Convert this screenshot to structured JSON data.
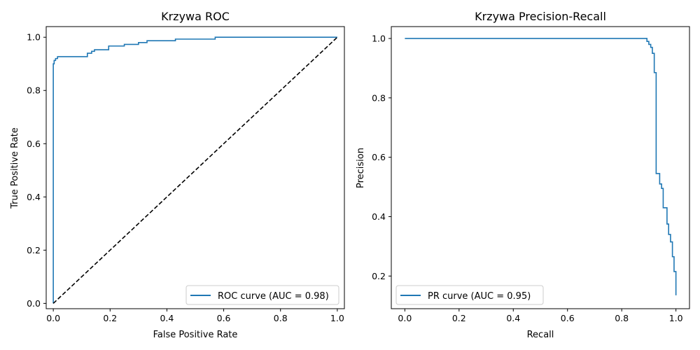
{
  "chart_data": [
    {
      "type": "line",
      "title": "Krzywa ROC",
      "xlabel": "False Positive Rate",
      "ylabel": "True Positive Rate",
      "xlim": [
        -0.025,
        1.025
      ],
      "ylim": [
        -0.02,
        1.04
      ],
      "xticks": [
        "0.0",
        "0.2",
        "0.4",
        "0.6",
        "0.8",
        "1.0"
      ],
      "yticks": [
        "0.0",
        "0.2",
        "0.4",
        "0.6",
        "0.8",
        "1.0"
      ],
      "legend_position": "lower-right",
      "grid": false,
      "series": [
        {
          "name": "ROC curve (AUC = 0.98)",
          "color": "#1f77b4",
          "style": "solid",
          "x": [
            0,
            0,
            0.003,
            0.003,
            0.008,
            0.008,
            0.015,
            0.015,
            0.12,
            0.12,
            0.135,
            0.135,
            0.145,
            0.145,
            0.195,
            0.195,
            0.25,
            0.25,
            0.3,
            0.3,
            0.33,
            0.33,
            0.43,
            0.43,
            0.57,
            0.57,
            1.0
          ],
          "y": [
            0,
            0.9,
            0.9,
            0.913,
            0.913,
            0.92,
            0.92,
            0.927,
            0.927,
            0.94,
            0.94,
            0.947,
            0.947,
            0.953,
            0.953,
            0.967,
            0.967,
            0.973,
            0.973,
            0.98,
            0.98,
            0.987,
            0.987,
            0.993,
            0.993,
            1.0,
            1.0
          ]
        },
        {
          "name": "",
          "color": "#000000",
          "style": "dashed",
          "x": [
            0,
            1
          ],
          "y": [
            0,
            1
          ]
        }
      ]
    },
    {
      "type": "line",
      "title": "Krzywa Precision-Recall",
      "xlabel": "Recall",
      "ylabel": "Precision",
      "xlim": [
        -0.05,
        1.05
      ],
      "ylim": [
        0.09,
        1.04
      ],
      "xticks": [
        "0.0",
        "0.2",
        "0.4",
        "0.6",
        "0.8",
        "1.0"
      ],
      "yticks": [
        "0.2",
        "0.4",
        "0.6",
        "0.8",
        "1.0"
      ],
      "legend_position": "lower-left",
      "grid": false,
      "series": [
        {
          "name": "PR curve (AUC = 0.95)",
          "color": "#1f77b4",
          "style": "steps",
          "x": [
            0,
            0.893,
            0.893,
            0.9,
            0.9,
            0.907,
            0.907,
            0.913,
            0.913,
            0.92,
            0.92,
            0.927,
            0.927,
            0.94,
            0.94,
            0.947,
            0.947,
            0.953,
            0.953,
            0.967,
            0.967,
            0.973,
            0.973,
            0.98,
            0.98,
            0.987,
            0.987,
            0.993,
            0.993,
            1.0,
            1.0
          ],
          "y": [
            1.0,
            1.0,
            0.99,
            0.99,
            0.98,
            0.98,
            0.97,
            0.97,
            0.95,
            0.95,
            0.885,
            0.885,
            0.545,
            0.545,
            0.51,
            0.51,
            0.495,
            0.495,
            0.43,
            0.43,
            0.375,
            0.375,
            0.34,
            0.34,
            0.315,
            0.315,
            0.265,
            0.265,
            0.215,
            0.215,
            0.135
          ]
        }
      ]
    }
  ]
}
